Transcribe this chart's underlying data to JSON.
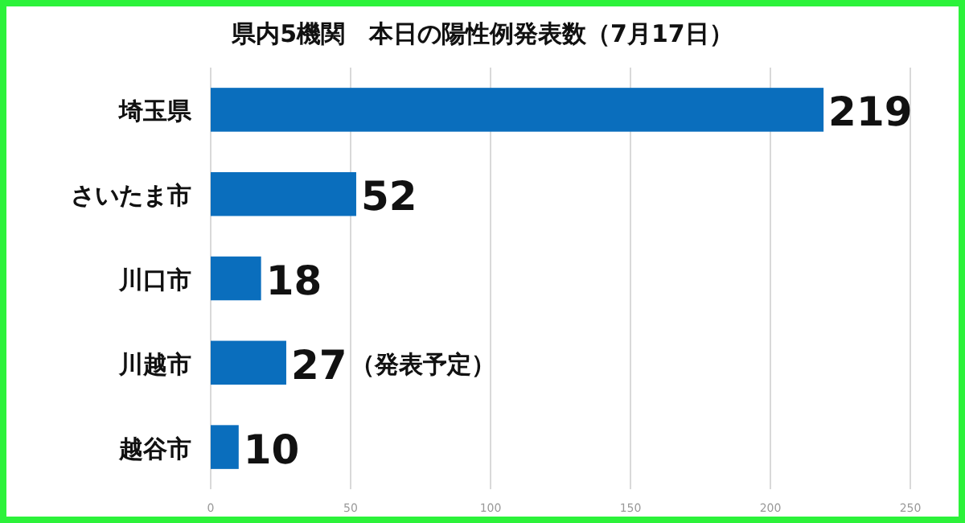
{
  "chart_data": {
    "type": "bar",
    "orientation": "horizontal",
    "title": "県内5機関　本日の陽性例発表数（7月17日）",
    "categories": [
      "埼玉県",
      "さいたま市",
      "川口市",
      "川越市",
      "越谷市"
    ],
    "values": [
      219,
      52,
      18,
      27,
      10
    ],
    "color": "#0a6ebd",
    "xlim": [
      0,
      250
    ],
    "xticks": [
      0,
      50,
      100,
      150,
      200,
      250
    ],
    "grid": "x",
    "data_labels": true,
    "annotations": [
      {
        "text": "（発表予定）",
        "x": 27,
        "y": "川越市"
      }
    ]
  }
}
